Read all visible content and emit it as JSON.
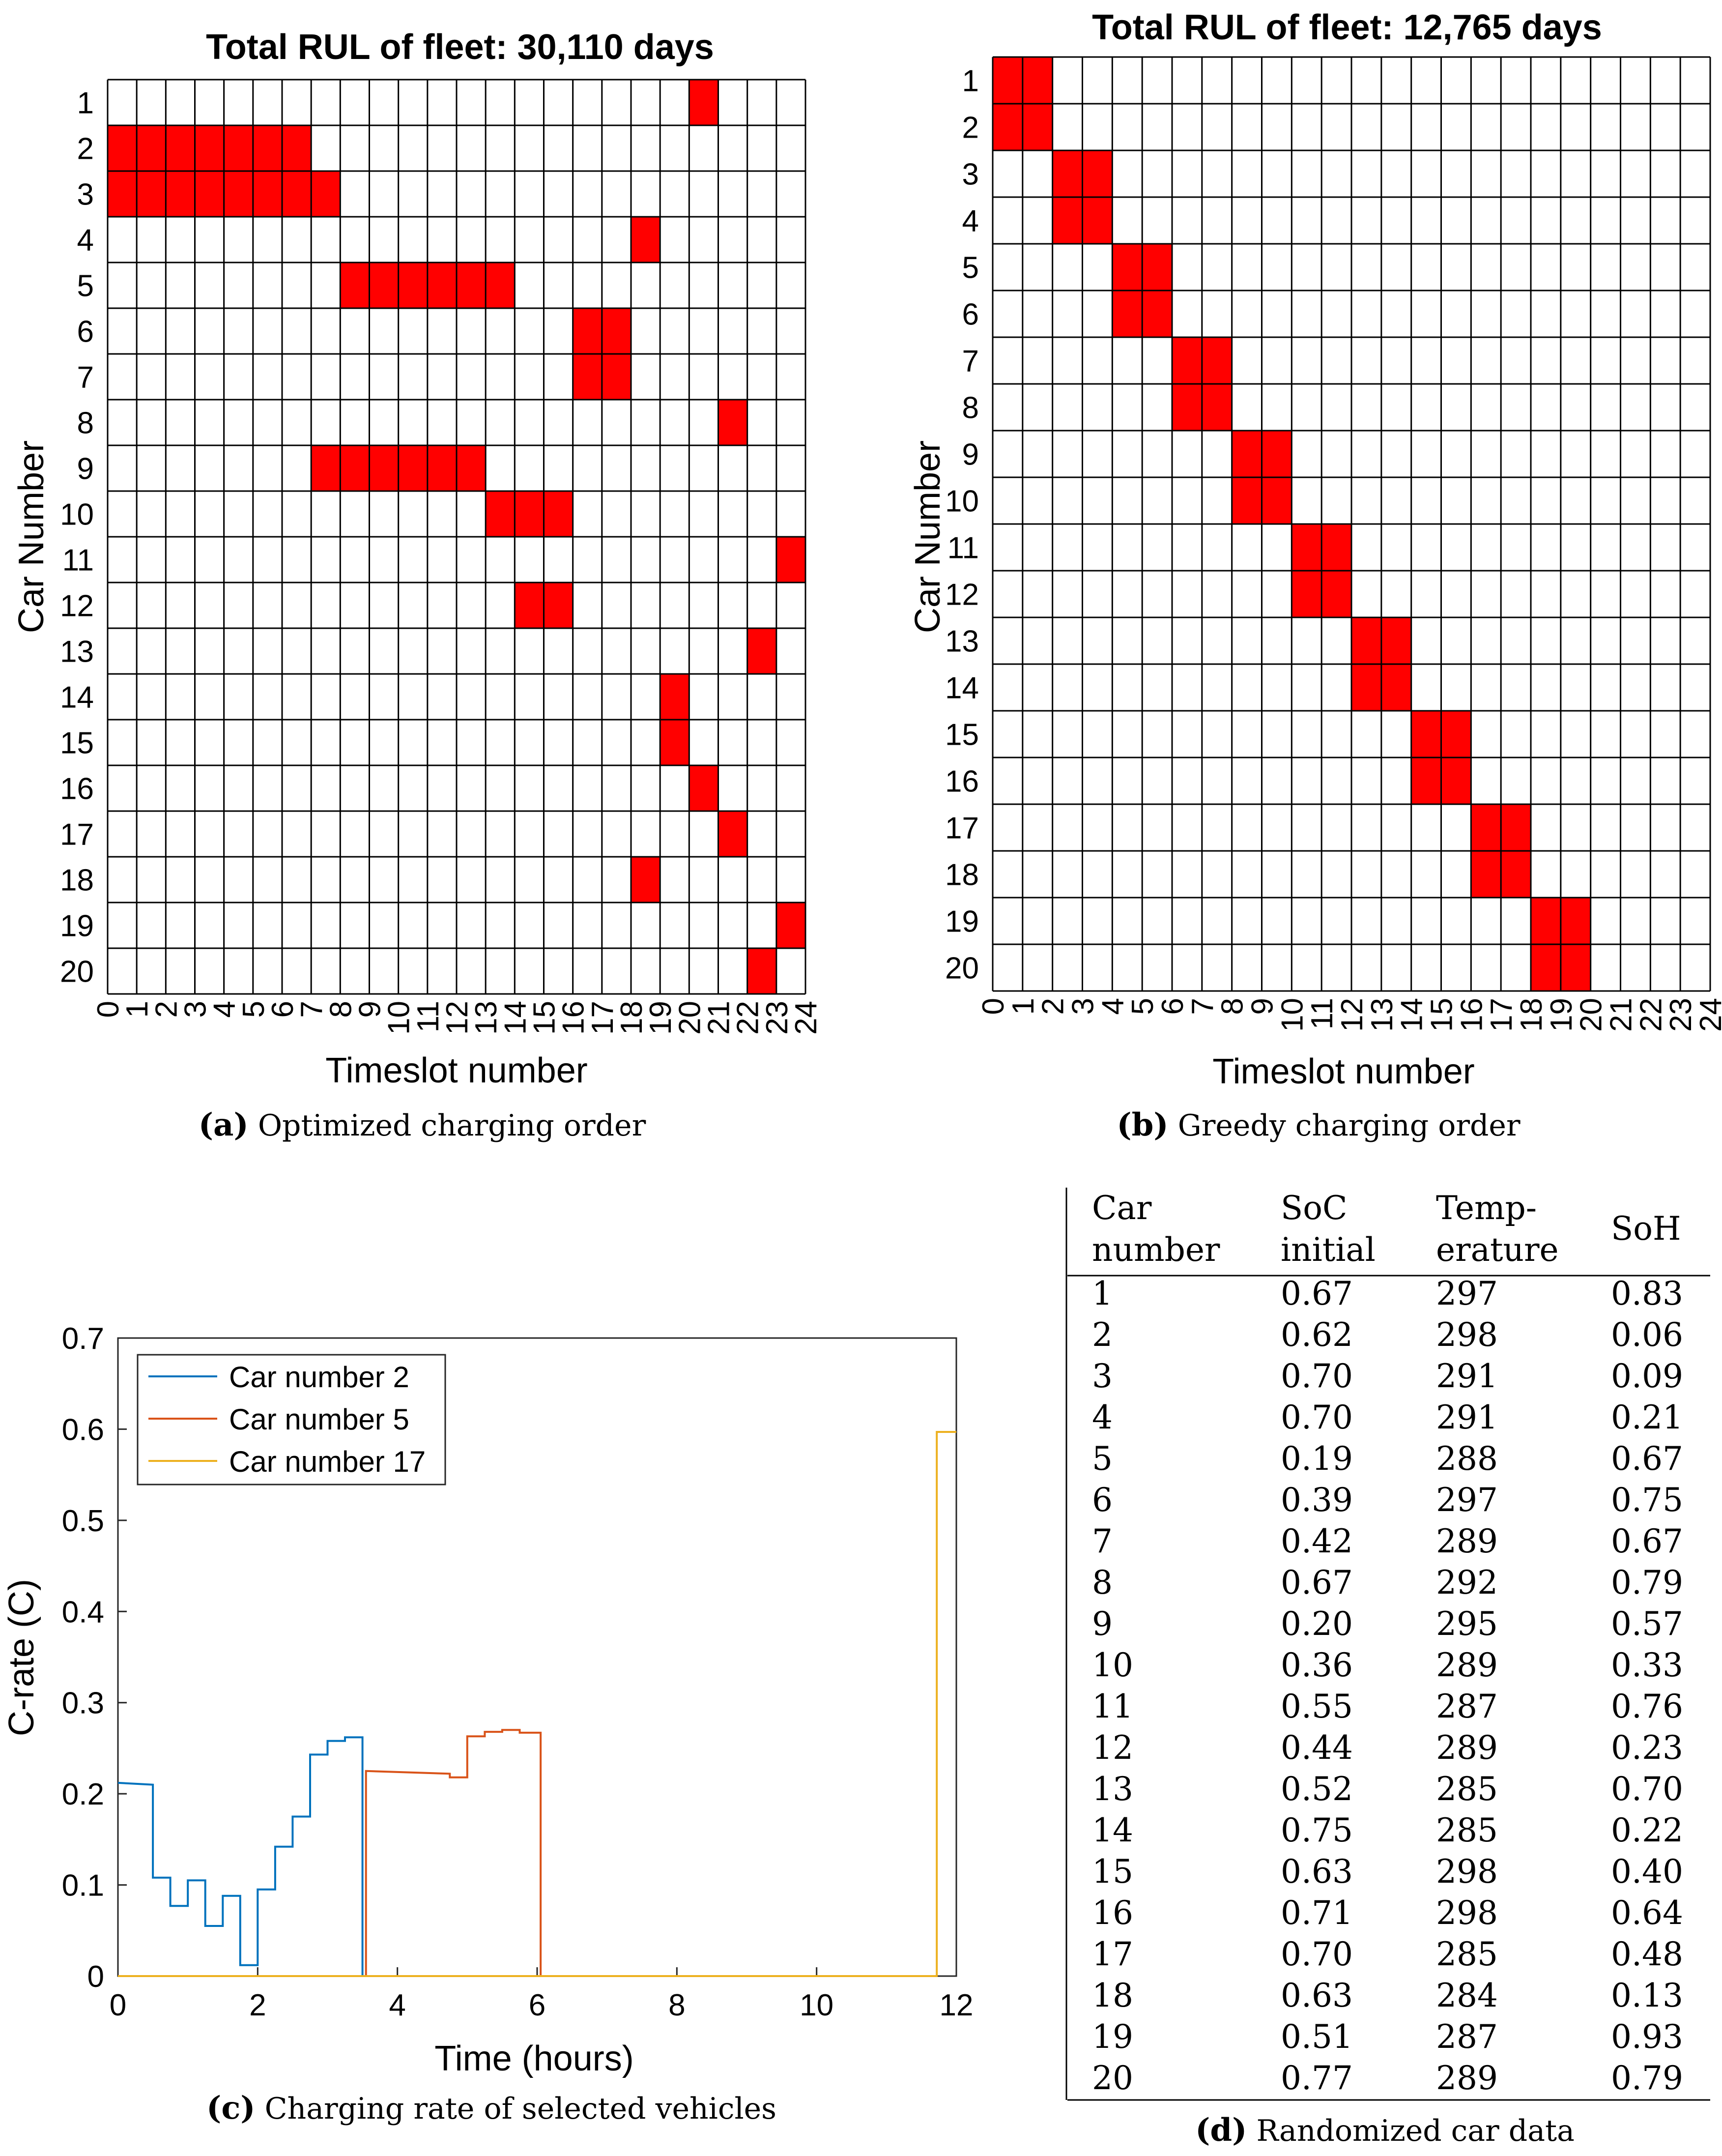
{
  "figures": {
    "a": {
      "label": "a",
      "caption": "Optimized charging order"
    },
    "b": {
      "label": "b",
      "caption": "Greedy charging order"
    },
    "c": {
      "label": "c",
      "caption": "Charging rate of selected vehicles"
    },
    "d": {
      "label": "d",
      "caption": "Randomized car data"
    }
  },
  "table": {
    "headers": [
      [
        "Car",
        "number"
      ],
      [
        "SoC",
        "initial"
      ],
      [
        "Temp-",
        "erature"
      ],
      [
        "SoH"
      ]
    ],
    "rows": [
      [
        "1",
        "0.67",
        "297",
        "0.83"
      ],
      [
        "2",
        "0.62",
        "298",
        "0.06"
      ],
      [
        "3",
        "0.70",
        "291",
        "0.09"
      ],
      [
        "4",
        "0.70",
        "291",
        "0.21"
      ],
      [
        "5",
        "0.19",
        "288",
        "0.67"
      ],
      [
        "6",
        "0.39",
        "297",
        "0.75"
      ],
      [
        "7",
        "0.42",
        "289",
        "0.67"
      ],
      [
        "8",
        "0.67",
        "292",
        "0.79"
      ],
      [
        "9",
        "0.20",
        "295",
        "0.57"
      ],
      [
        "10",
        "0.36",
        "289",
        "0.33"
      ],
      [
        "11",
        "0.55",
        "287",
        "0.76"
      ],
      [
        "12",
        "0.44",
        "289",
        "0.23"
      ],
      [
        "13",
        "0.52",
        "285",
        "0.70"
      ],
      [
        "14",
        "0.75",
        "285",
        "0.22"
      ],
      [
        "15",
        "0.63",
        "298",
        "0.40"
      ],
      [
        "16",
        "0.71",
        "298",
        "0.64"
      ],
      [
        "17",
        "0.70",
        "285",
        "0.48"
      ],
      [
        "18",
        "0.63",
        "284",
        "0.13"
      ],
      [
        "19",
        "0.51",
        "287",
        "0.93"
      ],
      [
        "20",
        "0.77",
        "289",
        "0.79"
      ]
    ]
  },
  "colors": {
    "schedule_fill": "#ff0000",
    "series_blue": "#0072bd",
    "series_orange": "#d95319",
    "series_yellow": "#edb120"
  },
  "chart_data": [
    {
      "id": "a",
      "type": "heatmap",
      "title": "Total RUL of fleet:  30,110 days",
      "xlabel": "Timeslot number",
      "ylabel": "Car Number",
      "x_ticks": [
        "0",
        "1",
        "2",
        "3",
        "4",
        "5",
        "6",
        "7",
        "8",
        "9",
        "10",
        "11",
        "12",
        "13",
        "14",
        "15",
        "16",
        "17",
        "18",
        "19",
        "20",
        "21",
        "22",
        "23",
        "24"
      ],
      "y_ticks": [
        "1",
        "2",
        "3",
        "4",
        "5",
        "6",
        "7",
        "8",
        "9",
        "10",
        "11",
        "12",
        "13",
        "14",
        "15",
        "16",
        "17",
        "18",
        "19",
        "20"
      ],
      "n_timeslots": 24,
      "n_cars": 20,
      "charging_slots": [
        {
          "car": 1,
          "slots": [
            21
          ]
        },
        {
          "car": 2,
          "slots": [
            1,
            2,
            3,
            4,
            5,
            6,
            7
          ]
        },
        {
          "car": 3,
          "slots": [
            1,
            2,
            3,
            4,
            5,
            6,
            7,
            8
          ]
        },
        {
          "car": 4,
          "slots": [
            19
          ]
        },
        {
          "car": 5,
          "slots": [
            9,
            10,
            11,
            12,
            13,
            14
          ]
        },
        {
          "car": 6,
          "slots": [
            17,
            18
          ]
        },
        {
          "car": 7,
          "slots": [
            17,
            18
          ]
        },
        {
          "car": 8,
          "slots": [
            22
          ]
        },
        {
          "car": 9,
          "slots": [
            8,
            9,
            10,
            11,
            12,
            13
          ]
        },
        {
          "car": 10,
          "slots": [
            14,
            15,
            16
          ]
        },
        {
          "car": 11,
          "slots": [
            24
          ]
        },
        {
          "car": 12,
          "slots": [
            15,
            16
          ]
        },
        {
          "car": 13,
          "slots": [
            23
          ]
        },
        {
          "car": 14,
          "slots": [
            20
          ]
        },
        {
          "car": 15,
          "slots": [
            20
          ]
        },
        {
          "car": 16,
          "slots": [
            21
          ]
        },
        {
          "car": 17,
          "slots": [
            22
          ]
        },
        {
          "car": 18,
          "slots": [
            19
          ]
        },
        {
          "car": 19,
          "slots": [
            24
          ]
        },
        {
          "car": 20,
          "slots": [
            23
          ]
        }
      ]
    },
    {
      "id": "b",
      "type": "heatmap",
      "title": "Total RUL of fleet:  12,765 days",
      "xlabel": "Timeslot number",
      "ylabel": "Car Number",
      "x_ticks": [
        "0",
        "1",
        "2",
        "3",
        "4",
        "5",
        "6",
        "7",
        "8",
        "9",
        "10",
        "11",
        "12",
        "13",
        "14",
        "15",
        "16",
        "17",
        "18",
        "19",
        "20",
        "21",
        "22",
        "23",
        "24"
      ],
      "y_ticks": [
        "1",
        "2",
        "3",
        "4",
        "5",
        "6",
        "7",
        "8",
        "9",
        "10",
        "11",
        "12",
        "13",
        "14",
        "15",
        "16",
        "17",
        "18",
        "19",
        "20"
      ],
      "n_timeslots": 24,
      "n_cars": 20,
      "charging_slots": [
        {
          "car": 1,
          "slots": [
            1,
            2
          ]
        },
        {
          "car": 2,
          "slots": [
            1,
            2
          ]
        },
        {
          "car": 3,
          "slots": [
            3,
            4
          ]
        },
        {
          "car": 4,
          "slots": [
            3,
            4
          ]
        },
        {
          "car": 5,
          "slots": [
            5,
            6
          ]
        },
        {
          "car": 6,
          "slots": [
            5,
            6
          ]
        },
        {
          "car": 7,
          "slots": [
            7,
            8
          ]
        },
        {
          "car": 8,
          "slots": [
            7,
            8
          ]
        },
        {
          "car": 9,
          "slots": [
            9,
            10
          ]
        },
        {
          "car": 10,
          "slots": [
            9,
            10
          ]
        },
        {
          "car": 11,
          "slots": [
            11,
            12
          ]
        },
        {
          "car": 12,
          "slots": [
            11,
            12
          ]
        },
        {
          "car": 13,
          "slots": [
            13,
            14
          ]
        },
        {
          "car": 14,
          "slots": [
            13,
            14
          ]
        },
        {
          "car": 15,
          "slots": [
            15,
            16
          ]
        },
        {
          "car": 16,
          "slots": [
            15,
            16
          ]
        },
        {
          "car": 17,
          "slots": [
            17,
            18
          ]
        },
        {
          "car": 18,
          "slots": [
            17,
            18
          ]
        },
        {
          "car": 19,
          "slots": [
            19,
            20
          ]
        },
        {
          "car": 20,
          "slots": [
            19,
            20
          ]
        }
      ]
    },
    {
      "id": "c",
      "type": "line",
      "xlabel": "Time (hours)",
      "ylabel": "C-rate (C)",
      "xlim": [
        0,
        12
      ],
      "ylim": [
        0,
        0.7
      ],
      "x_ticks": [
        "0",
        "2",
        "4",
        "6",
        "8",
        "10",
        "12"
      ],
      "y_ticks": [
        "0",
        "0.1",
        "0.2",
        "0.3",
        "0.4",
        "0.5",
        "0.6",
        "0.7"
      ],
      "legend_position": "top-left",
      "series": [
        {
          "name": "Car number 2",
          "color": "#0072bd",
          "x": [
            0,
            0.5,
            0.5,
            0.75,
            0.75,
            1.0,
            1.0,
            1.25,
            1.25,
            1.5,
            1.5,
            1.75,
            1.75,
            2.0,
            2.0,
            2.25,
            2.25,
            2.5,
            2.5,
            2.75,
            2.75,
            3.0,
            3.0,
            3.25,
            3.25,
            3.5,
            3.5
          ],
          "y": [
            0.212,
            0.21,
            0.108,
            0.108,
            0.077,
            0.077,
            0.105,
            0.105,
            0.055,
            0.055,
            0.088,
            0.088,
            0.012,
            0.012,
            0.095,
            0.095,
            0.142,
            0.142,
            0.175,
            0.175,
            0.243,
            0.243,
            0.258,
            0.258,
            0.262,
            0.262,
            0
          ]
        },
        {
          "name": "Car number 5",
          "color": "#d95319",
          "x": [
            3.55,
            3.55,
            4.75,
            4.75,
            5.0,
            5.0,
            5.25,
            5.25,
            5.5,
            5.5,
            5.75,
            5.75,
            6.05,
            6.05
          ],
          "y": [
            0,
            0.225,
            0.222,
            0.218,
            0.218,
            0.263,
            0.263,
            0.268,
            0.268,
            0.27,
            0.27,
            0.267,
            0.267,
            0
          ]
        },
        {
          "name": "Car number 17",
          "color": "#edb120",
          "x": [
            0,
            11.72,
            11.72,
            12.0
          ],
          "y": [
            0,
            0,
            0.597,
            0.597
          ]
        }
      ]
    }
  ]
}
